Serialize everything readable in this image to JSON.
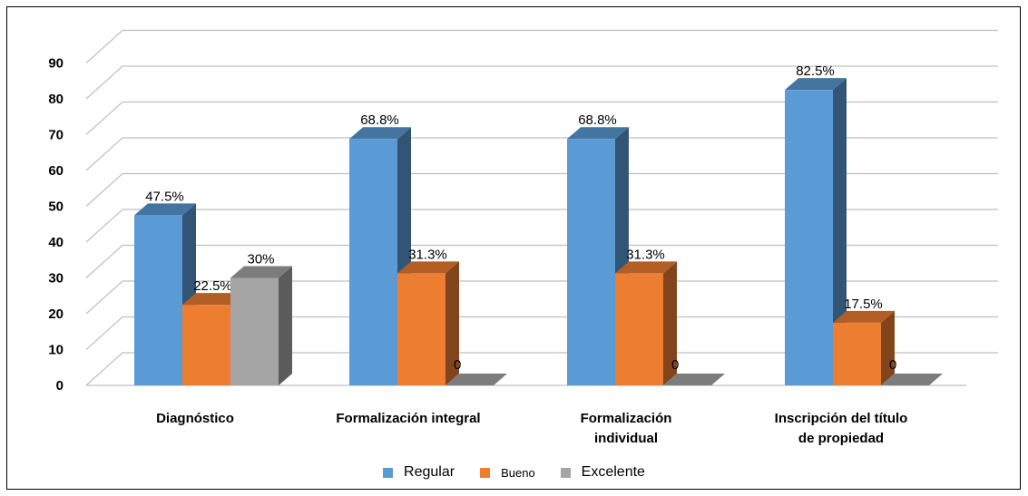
{
  "chart_data": {
    "type": "bar",
    "categories": [
      [
        "Diagnóstico"
      ],
      [
        "Formalización integral"
      ],
      [
        "Formalización",
        "individual"
      ],
      [
        "Inscripción del título",
        "de propiedad"
      ]
    ],
    "series": [
      {
        "name": "Regular",
        "values": [
          47.5,
          68.8,
          68.8,
          82.5
        ],
        "labels": [
          "47.5%",
          "68.8%",
          "68.8%",
          "82.5%"
        ],
        "color": "#5b9bd5"
      },
      {
        "name": "Bueno",
        "values": [
          22.5,
          31.3,
          31.3,
          17.5
        ],
        "labels": [
          "22.5%",
          "31.3%",
          "31.3%",
          "17.5%"
        ],
        "color": "#ed7d31"
      },
      {
        "name": "Excelente",
        "values": [
          30,
          0,
          0,
          0
        ],
        "labels": [
          "30%",
          "0",
          "0",
          "0"
        ],
        "color": "#a5a5a5"
      }
    ],
    "yticks": [
      "0",
      "10",
      "20",
      "30",
      "40",
      "50",
      "60",
      "70",
      "80",
      "90"
    ],
    "ylim": [
      0,
      90
    ],
    "grid": true,
    "legend_position": "bottom",
    "title": "",
    "xlabel": "",
    "ylabel": ""
  }
}
